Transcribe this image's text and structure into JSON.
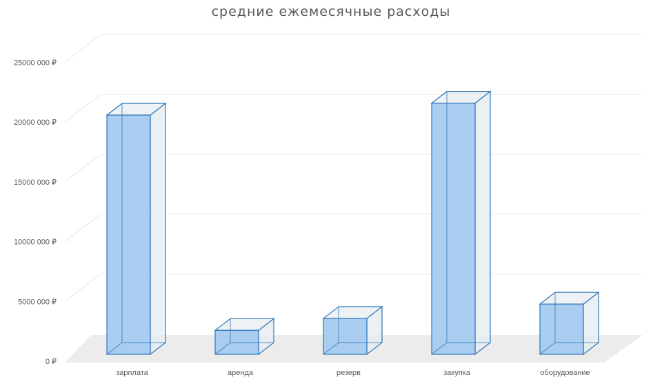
{
  "chart_data": {
    "type": "bar",
    "title": "средние ежемесячные расходы",
    "categories": [
      "зарплата",
      "аренда",
      "резерв",
      "закупка",
      "оборудование"
    ],
    "series": [
      {
        "values": [
          20000000,
          2000000,
          3000000,
          21000000,
          4200000
        ]
      }
    ],
    "ylim": [
      0,
      25000000
    ],
    "yticks": [
      0,
      5000000,
      10000000,
      15000000,
      20000000,
      25000000
    ],
    "ytick_labels": [
      "0 ₽",
      "5000 000 ₽",
      "10000 000 ₽",
      "15000 000 ₽",
      "20000 000 ₽",
      "25000 000 ₽"
    ],
    "grid": true,
    "style": "3d-column",
    "colors": {
      "bar_fill": "#a4cbf1",
      "bar_stroke": "#2e75b6",
      "side_fill": "#e8edf2",
      "floor": "#ececec",
      "grid": "#e6e6e6"
    }
  }
}
